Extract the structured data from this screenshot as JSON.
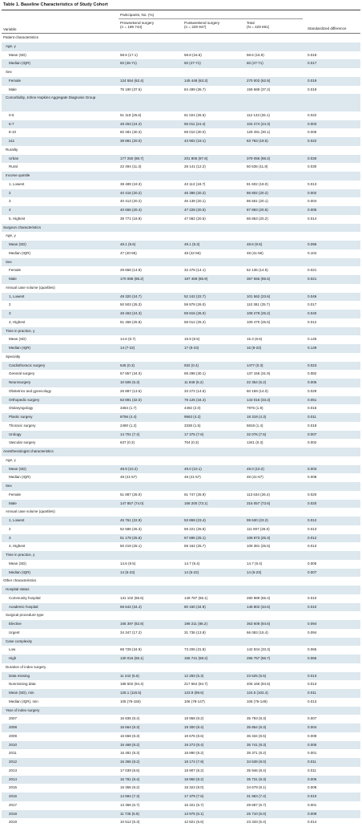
{
  "title": "Table 1. Baseline Characteristics of Study Cohort",
  "header": {
    "variable": "Variable",
    "participants": "Participants, No. (%)",
    "col1_a": "Preweekend surgery",
    "col1_b": "(n = 199 744)",
    "col2_a": "Postweekend surgery",
    "col2_b": "(n = 229 947)",
    "col3_a": "Total",
    "col3_b": "(N = 429 691)",
    "col4": "Standardized difference"
  },
  "rows": [
    {
      "label": "Patient characteristics",
      "level": 0,
      "c": [
        "",
        "",
        "",
        ""
      ]
    },
    {
      "label": "Age, y",
      "level": 1,
      "c": [
        "",
        "",
        "",
        ""
      ]
    },
    {
      "label": "Mean (SD)",
      "level": 2,
      "c": [
        "58.5 (17.1)",
        "58.8 (16.6)",
        "58.6 (16.9)",
        "0.018"
      ]
    },
    {
      "label": "Median (IQR)",
      "level": 2,
      "c": [
        "60 (46-71)",
        "60 (47-71)",
        "60 (47-71)",
        "0.017"
      ]
    },
    {
      "label": "Sex",
      "level": 1,
      "c": [
        "",
        "",
        "",
        ""
      ]
    },
    {
      "label": "Female",
      "level": 2,
      "c": [
        "124 554 (62.4)",
        "145 448 (63.3)",
        "270 002 (62.8)",
        "0.019"
      ]
    },
    {
      "label": "Male",
      "level": 2,
      "c": [
        "75 190 (37.6)",
        "84 499 (36.7)",
        "159 689 (37.2)",
        "0.019"
      ]
    },
    {
      "label": "Comorbidity, Johns Hopkins Aggregate Diagnosis Group",
      "level": 1,
      "two": true,
      "c": [
        "",
        "",
        "",
        ""
      ]
    },
    {
      "label": "0-5",
      "level": 2,
      "c": [
        "51 119 (25.6)",
        "61 024 (26.5)",
        "112 143 (26.1)",
        "0.022"
      ]
    },
    {
      "label": "6-7",
      "level": 2,
      "c": [
        "48 263 (24.2)",
        "56 011 (24.4)",
        "104 274 (24.3)",
        "0.003"
      ]
    },
    {
      "label": "8-10",
      "level": 2,
      "c": [
        "60 481 (30.3)",
        "69 010 (30.0)",
        "129 491 (30.1)",
        "0.006"
      ]
    },
    {
      "label": "≥11",
      "level": 2,
      "c": [
        "39 881 (20.0)",
        "43 902 (19.1)",
        "83 783 (19.5)",
        "0.022"
      ]
    },
    {
      "label": "Rurality",
      "level": 1,
      "c": [
        "",
        "",
        "",
        ""
      ]
    },
    {
      "label": "Urban",
      "level": 2,
      "c": [
        "177 250 (88.7)",
        "201 806 (87.8)",
        "379 056 (88.2)",
        "0.030"
      ]
    },
    {
      "label": "Rural",
      "level": 2,
      "c": [
        "22 494 (11.3)",
        "28 141 (12.2)",
        "50 635 (11.8)",
        "0.030"
      ]
    },
    {
      "label": "Income quintile",
      "level": 1,
      "c": [
        "",
        "",
        "",
        ""
      ]
    },
    {
      "label": "1, Lowest",
      "level": 2,
      "c": [
        "38 489 (19.3)",
        "43 113 (18.7)",
        "81 602 (19.0)",
        "0.013"
      ]
    },
    {
      "label": "2",
      "level": 2,
      "c": [
        "40 416 (20.2)",
        "46 386 (20.2)",
        "86 802 (20.2)",
        "0.002"
      ]
    },
    {
      "label": "3",
      "level": 2,
      "c": [
        "40 413 (20.2)",
        "46 138 (20.1)",
        "86 551 (20.1)",
        "0.004"
      ]
    },
    {
      "label": "4",
      "level": 2,
      "c": [
        "40 655 (20.4)",
        "47 228 (20.5)",
        "87 883 (20.5)",
        "0.005"
      ]
    },
    {
      "label": "5, Highest",
      "level": 2,
      "c": [
        "39 771 (19.9)",
        "47 082 (20.5)",
        "86 853 (20.2)",
        "0.014"
      ]
    },
    {
      "label": "Surgeon characteristics",
      "level": 0,
      "c": [
        "",
        "",
        "",
        ""
      ]
    },
    {
      "label": "Age, y",
      "level": 1,
      "c": [
        "",
        "",
        "",
        ""
      ]
    },
    {
      "label": "Mean (SD)",
      "level": 2,
      "c": [
        "48.1 (9.6)",
        "49.1 (9.3)",
        "48.6 (9.5)",
        "0.096"
      ]
    },
    {
      "label": "Median (IQR)",
      "level": 2,
      "c": [
        "47 (40-55)",
        "48 (42-56)",
        "48 (41-56)",
        "0.104"
      ]
    },
    {
      "label": "Sex",
      "level": 1,
      "c": [
        "",
        "",
        "",
        ""
      ]
    },
    {
      "label": "Female",
      "level": 2,
      "c": [
        "29 658 (14.8)",
        "32 478 (14.1)",
        "62 136 (14.5)",
        "0.021"
      ]
    },
    {
      "label": "Male",
      "level": 2,
      "c": [
        "170 086 (85.2)",
        "197 469 (85.9)",
        "367 555 (85.5)",
        "0.021"
      ]
    },
    {
      "label": "Annual case volume (quartiles)",
      "level": 1,
      "c": [
        "",
        "",
        "",
        ""
      ]
    },
    {
      "label": "1, Lowest",
      "level": 2,
      "c": [
        "49 320 (24.7)",
        "52 242 (22.7)",
        "101 562 (23.6)",
        "0.046"
      ]
    },
    {
      "label": "2",
      "level": 2,
      "c": [
        "50 503 (25.3)",
        "59 878 (26.0)",
        "110 381 (25.7)",
        "0.017"
      ]
    },
    {
      "label": "3",
      "level": 2,
      "c": [
        "48 463 (24.3)",
        "59 815 (26.0)",
        "108 278 (25.2)",
        "0.040"
      ]
    },
    {
      "label": "4, Highest",
      "level": 2,
      "c": [
        "51 458 (25.8)",
        "58 012 (25.2)",
        "109 470 (25.5)",
        "0.012"
      ]
    },
    {
      "label": "Time in practice, y",
      "level": 1,
      "c": [
        "",
        "",
        "",
        ""
      ]
    },
    {
      "label": "Mean (SD)",
      "level": 2,
      "c": [
        "14.6 (8.7)",
        "15.9 (8.5)",
        "15.3 (8.6)",
        "0.145"
      ]
    },
    {
      "label": "Median (IQR)",
      "level": 2,
      "c": [
        "14 (7-22)",
        "17 (8-23)",
        "16 (8-22)",
        "0.149"
      ]
    },
    {
      "label": "Specialty",
      "level": 1,
      "c": [
        "",
        "",
        "",
        ""
      ]
    },
    {
      "label": "Cardiothoracic surgery",
      "level": 2,
      "c": [
        "545 (0.3)",
        "932 (0.4)",
        "1477 (0.3)",
        "0.023"
      ]
    },
    {
      "label": "General surgery",
      "level": 2,
      "c": [
        "67 857 (34.0)",
        "69 298 (30.1)",
        "137 155 (31.9)",
        "0.082"
      ]
    },
    {
      "label": "Neurosurgery",
      "level": 2,
      "c": [
        "10 506 (5.3)",
        "11 848 (5.2)",
        "22 354 (5.2)",
        "0.005"
      ]
    },
    {
      "label": "Obstetrics and gynecology",
      "level": 2,
      "c": [
        "26 887 (13.5)",
        "33 272 (14.5)",
        "60 159 (14.0)",
        "0.029"
      ]
    },
    {
      "label": "Orthopedic surgery",
      "level": 2,
      "c": [
        "63 891 (32.0)",
        "79 125 (34.4)",
        "143 016 (33.3)",
        "0.051"
      ]
    },
    {
      "label": "Otolaryngology",
      "level": 2,
      "c": [
        "3484 (1.7)",
        "4492 (2.0)",
        "7976 (1.9)",
        "0.016"
      ]
    },
    {
      "label": "Plastic surgery",
      "level": 2,
      "c": [
        "8756 (4.4)",
        "9563 (4.2)",
        "18 319 (4.3)",
        "0.011"
      ]
    },
    {
      "label": "Thoracic surgery",
      "level": 2,
      "c": [
        "2480 (1.2)",
        "3338 (1.5)",
        "5818 (1.4)",
        "0.018"
      ]
    },
    {
      "label": "Urology",
      "level": 2,
      "c": [
        "14 701 (7.4)",
        "17 375 (7.6)",
        "32 076 (7.5)",
        "0.007"
      ]
    },
    {
      "label": "Vascular surgery",
      "level": 2,
      "c": [
        "637 (0.3)",
        "704 (0.3)",
        "1341 (0.3)",
        "0.002"
      ]
    },
    {
      "label": "Anesthesiologist characteristics",
      "level": 0,
      "c": [
        "",
        "",
        "",
        ""
      ]
    },
    {
      "label": "Age, y",
      "level": 1,
      "c": [
        "",
        "",
        "",
        ""
      ]
    },
    {
      "label": "Mean (SD)",
      "level": 2,
      "c": [
        "48.9 (10.2)",
        "49.0 (10.1)",
        "49.0 (10.2)",
        "0.003"
      ]
    },
    {
      "label": "Median (IQR)",
      "level": 2,
      "c": [
        "48 (41-57)",
        "48 (41-57)",
        "48 (41-57)",
        "0.008"
      ]
    },
    {
      "label": "Sex",
      "level": 1,
      "c": [
        "",
        "",
        "",
        ""
      ]
    },
    {
      "label": "Female",
      "level": 2,
      "c": [
        "51 887 (26.0)",
        "61 747 (26.9)",
        "113 634 (26.4)",
        "0.020"
      ]
    },
    {
      "label": "Male",
      "level": 2,
      "c": [
        "147 857 (74.0)",
        "168 200 (73.1)",
        "316 057 (73.6)",
        "0.020"
      ]
    },
    {
      "label": "Annual case volume (quartiles)",
      "level": 1,
      "c": [
        "",
        "",
        "",
        ""
      ]
    },
    {
      "label": "1, Lowest",
      "level": 2,
      "c": [
        "45 761 (22.9)",
        "53 869 (23.4)",
        "99 630 (23.2)",
        "0.012"
      ]
    },
    {
      "label": "2",
      "level": 2,
      "c": [
        "52 586 (26.3)",
        "59 221 (25.8)",
        "111 807 (26.0)",
        "0.013"
      ]
    },
    {
      "label": "3",
      "level": 2,
      "c": [
        "51 178 (25.6)",
        "57 695 (25.1)",
        "108 873 (25.3)",
        "0.012"
      ]
    },
    {
      "label": "4, Highest",
      "level": 2,
      "c": [
        "50 219 (25.1)",
        "59 162 (25.7)",
        "109 381 (25.5)",
        "0.013"
      ]
    },
    {
      "label": "Time in practice, y",
      "level": 1,
      "c": [
        "",
        "",
        "",
        ""
      ]
    },
    {
      "label": "Mean (SD)",
      "level": 2,
      "c": [
        "14.6 (9.5)",
        "14.7 (9.4)",
        "14.7 (9.4)",
        "0.005"
      ]
    },
    {
      "label": "Median (IQR)",
      "level": 2,
      "c": [
        "14 (6-23)",
        "14 (6-22)",
        "14 (6-23)",
        "0.007"
      ]
    },
    {
      "label": "Other characteristics",
      "level": 0,
      "c": [
        "",
        "",
        "",
        ""
      ]
    },
    {
      "label": "Hospital status",
      "level": 1,
      "c": [
        "",
        "",
        "",
        ""
      ]
    },
    {
      "label": "Community hospital",
      "level": 2,
      "c": [
        "131 102 (65.6)",
        "149 787 (65.1)",
        "280 889 (65.4)",
        "0.010"
      ]
    },
    {
      "label": "Academic hospital",
      "level": 2,
      "c": [
        "68 642 (34.4)",
        "80 160 (34.9)",
        "148 802 (34.6)",
        "0.010"
      ]
    },
    {
      "label": "Surgical procedure type",
      "level": 1,
      "c": [
        "",
        "",
        "",
        ""
      ]
    },
    {
      "label": "Elective",
      "level": 2,
      "c": [
        "165 397 (82.8)",
        "198 211 (86.2)",
        "363 608 (84.6)",
        "0.094"
      ]
    },
    {
      "label": "Urgent",
      "level": 2,
      "c": [
        "34 347 (17.2)",
        "31 736 (13.8)",
        "66 083 (15.4)",
        "0.094"
      ]
    },
    {
      "label": "Case complexity",
      "level": 1,
      "c": [
        "",
        "",
        "",
        ""
      ]
    },
    {
      "label": "Low",
      "level": 2,
      "c": [
        "69 728 (34.9)",
        "73 206 (31.8)",
        "142 934 (33.3)",
        "0.065"
      ]
    },
    {
      "label": "High",
      "level": 2,
      "c": [
        "130 016 (65.1)",
        "156 741 (68.2)",
        "286 757 (66.7)",
        "0.065"
      ]
    },
    {
      "label": "Duration of index surgery",
      "level": 1,
      "c": [
        "",
        "",
        "",
        ""
      ]
    },
    {
      "label": "Data missing",
      "level": 2,
      "c": [
        "11 242 (5.6)",
        "12 283 (5.3)",
        "23 525 (5.5)",
        "0.013"
      ]
    },
    {
      "label": "Nonmissing data",
      "level": 2,
      "c": [
        "188 502 (94.4)",
        "217 664 (94.7)",
        "406 166 (94.5)",
        "0.013"
      ]
    },
    {
      "label": "Mean (SD), min",
      "level": 2,
      "c": [
        "125.1 (115.5)",
        "123.9 (89.6)",
        "124.5 (102.4)",
        "0.011"
      ]
    },
    {
      "label": "Median (IQR), min",
      "level": 2,
      "c": [
        "105 (75-150)",
        "106 (78-147)",
        "106 (76-149)",
        "0.013"
      ]
    },
    {
      "label": "Year of index surgery",
      "level": 1,
      "c": [
        "",
        "",
        "",
        ""
      ]
    },
    {
      "label": "2007",
      "level": 2,
      "c": [
        "16 835 (8.4)",
        "18 958 (8.2)",
        "35 793 (8.3)",
        "0.007"
      ]
    },
    {
      "label": "2008",
      "level": 2,
      "c": [
        "16 564 (8.3)",
        "19 300 (8.4)",
        "35 864 (8.3)",
        "0.004"
      ]
    },
    {
      "label": "2009",
      "level": 2,
      "c": [
        "16 658 (8.3)",
        "19 676 (8.6)",
        "36 334 (8.5)",
        "0.008"
      ]
    },
    {
      "label": "2010",
      "level": 2,
      "c": [
        "16 468 (8.2)",
        "19 273 (8.4)",
        "35 741 (8.3)",
        "0.005"
      ]
    },
    {
      "label": "2011",
      "level": 2,
      "c": [
        "16 481 (8.3)",
        "18 890 (8.2)",
        "35 371 (8.2)",
        "0.001"
      ]
    },
    {
      "label": "2012",
      "level": 2,
      "c": [
        "16 365 (8.2)",
        "18 174 (7.9)",
        "34 539 (8.0)",
        "0.011"
      ]
    },
    {
      "label": "2013",
      "level": 2,
      "c": [
        "17 039 (8.5)",
        "18 907 (8.2)",
        "35 946 (8.4)",
        "0.011"
      ]
    },
    {
      "label": "2014",
      "level": 2,
      "c": [
        "16 781 (8.4)",
        "18 950 (8.2)",
        "35 731 (8.3)",
        "0.006"
      ]
    },
    {
      "label": "2015",
      "level": 2,
      "c": [
        "16 356 (8.2)",
        "18 323 (8.0)",
        "34 679 (8.1)",
        "0.008"
      ]
    },
    {
      "label": "2016",
      "level": 2,
      "c": [
        "14 584 (7.3)",
        "17 379 (7.6)",
        "31 963 (7.4)",
        "0.010"
      ]
    },
    {
      "label": "2017",
      "level": 2,
      "c": [
        "13 366 (6.7)",
        "15 321 (6.7)",
        "28 687 (6.7)",
        "0.001"
      ]
    },
    {
      "label": "2018",
      "level": 2,
      "c": [
        "11 735 (5.9)",
        "13 975 (6.1)",
        "25 710 (6.0)",
        "0.009"
      ]
    },
    {
      "label": "2019",
      "level": 2,
      "c": [
        "10 512 (5.3)",
        "12 821 (5.6)",
        "23 333 (5.4)",
        "0.014"
      ]
    }
  ]
}
